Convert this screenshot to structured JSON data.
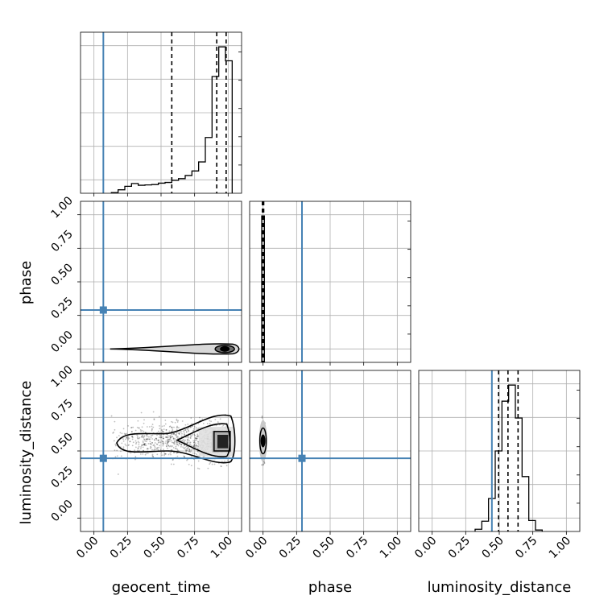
{
  "chart_data": {
    "type": "corner",
    "params": [
      "geocent_time",
      "phase",
      "luminosity_distance"
    ],
    "axis_labels": {
      "geocent_time": "geocent_time",
      "phase": "phase",
      "luminosity_distance": "luminosity_distance"
    },
    "range": [
      -0.1,
      1.1
    ],
    "ticks": [
      0.0,
      0.25,
      0.5,
      0.75,
      1.0
    ],
    "tick_labels": [
      "0.00",
      "0.25",
      "0.50",
      "0.75",
      "1.00"
    ],
    "grid": true,
    "truths": {
      "geocent_time": 0.07,
      "phase": 0.29,
      "luminosity_distance": 0.445
    },
    "truth_color": "#4682b4",
    "hist_color": "#000000",
    "histograms": {
      "geocent_time": {
        "bin_edges": [
          0.13,
          0.18,
          0.23,
          0.28,
          0.33,
          0.38,
          0.43,
          0.48,
          0.53,
          0.58,
          0.63,
          0.68,
          0.73,
          0.78,
          0.83,
          0.88,
          0.93,
          0.98,
          1.03
        ],
        "counts": [
          2,
          10,
          20,
          28,
          23,
          24,
          25,
          29,
          31,
          37,
          42,
          51,
          64,
          90,
          160,
          335,
          420,
          380
        ],
        "quantiles": [
          0.58,
          0.915,
          0.985
        ]
      },
      "phase": {
        "bin_edges": [
          -0.01,
          0.0,
          0.01
        ],
        "counts": [
          100,
          100
        ],
        "quantiles": [
          -0.005,
          0.0,
          0.005
        ]
      },
      "luminosity_distance": {
        "bin_edges": [
          0.32,
          0.37,
          0.42,
          0.47,
          0.52,
          0.57,
          0.62,
          0.67,
          0.72,
          0.77,
          0.82
        ],
        "counts": [
          3,
          14,
          45,
          110,
          178,
          200,
          155,
          75,
          15,
          2
        ],
        "quantiles": [
          0.495,
          0.565,
          0.64
        ]
      }
    },
    "pairs": [
      {
        "x": "geocent_time",
        "y": "phase",
        "center": [
          0.975,
          0.0
        ],
        "spread": "narrow"
      },
      {
        "x": "geocent_time",
        "y": "luminosity_distance",
        "center": [
          0.965,
          0.57
        ],
        "spread": "wide"
      },
      {
        "x": "phase",
        "y": "luminosity_distance",
        "center": [
          0.0,
          0.575
        ],
        "spread": "narrow"
      }
    ]
  }
}
